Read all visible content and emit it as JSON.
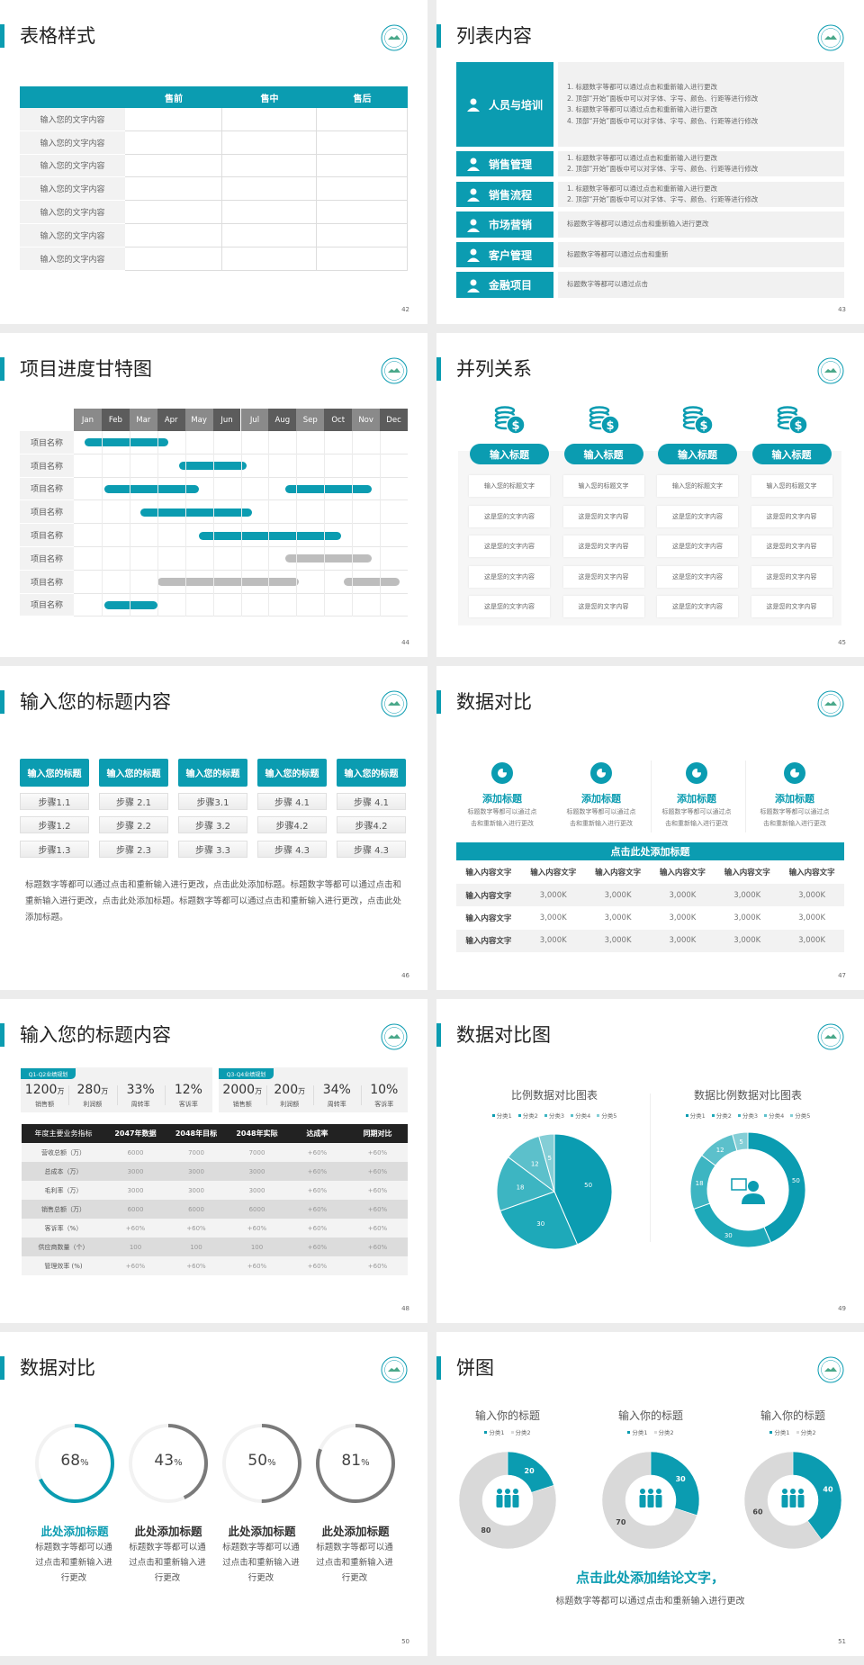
{
  "theme": {
    "accent": "#0b9cb1",
    "gray_bar": "#bdbdbd",
    "dark_header": "#222222"
  },
  "slides": [
    {
      "title": "表格样式",
      "page": "42",
      "table": {
        "headers": [
          "",
          "售前",
          "售中",
          "售后"
        ],
        "rows": [
          "输入您的文字内容",
          "输入您的文字内容",
          "输入您的文字内容",
          "输入您的文字内容",
          "输入您的文字内容",
          "输入您的文字内容",
          "输入您的文字内容"
        ]
      }
    },
    {
      "title": "列表内容",
      "page": "43",
      "items": [
        {
          "label": "人员与培训",
          "icon": "team-training-icon",
          "lines": [
            "1.  标题数字等都可以通过点击和重新输入进行更改",
            "2.  顶部“开始”面板中可以对字体、字号、颜色、行距等进行修改",
            "3.  标题数字等都可以通过点击和重新输入进行更改",
            "4.  顶部“开始”面板中可以对字体、字号、颜色、行距等进行修改"
          ]
        },
        {
          "label": "销售管理",
          "icon": "user-gear-icon",
          "lines": [
            "1.  标题数字等都可以通过点击和重新输入进行更改",
            "2.  顶部“开始”面板中可以对字体、字号、颜色、行距等进行修改"
          ]
        },
        {
          "label": "销售流程",
          "icon": "shield-icon",
          "lines": [
            "1.  标题数字等都可以通过点击和重新输入进行更改",
            "2.  顶部“开始”面板中可以对字体、字号、颜色、行距等进行修改"
          ]
        },
        {
          "label": "市场营销",
          "icon": "bar-chart-icon",
          "lines": [
            "标题数字等都可以通过点击和重新输入进行更改"
          ]
        },
        {
          "label": "客户管理",
          "icon": "users-icon",
          "lines": [
            "标题数字等都可以通过点击和重新"
          ]
        },
        {
          "label": "金融项目",
          "icon": "money-hand-icon",
          "lines": [
            "标题数字等都可以通过点击"
          ]
        }
      ]
    },
    {
      "title": "项目进度甘特图",
      "page": "44",
      "gantt": {
        "months": [
          "Jan",
          "Feb",
          "Mar",
          "Apr",
          "May",
          "Jun",
          "Jul",
          "Aug",
          "Sep",
          "Oct",
          "Nov",
          "Dec"
        ],
        "rows": [
          {
            "label": "项目名称",
            "bars": [
              {
                "start": 0.4,
                "end": 3.4,
                "status": "active"
              }
            ]
          },
          {
            "label": "项目名称",
            "bars": [
              {
                "start": 3.8,
                "end": 6.2,
                "status": "active"
              }
            ]
          },
          {
            "label": "项目名称",
            "bars": [
              {
                "start": 1.1,
                "end": 4.5,
                "status": "active"
              },
              {
                "start": 7.6,
                "end": 10.7,
                "status": "active"
              }
            ]
          },
          {
            "label": "项目名称",
            "bars": [
              {
                "start": 2.4,
                "end": 6.4,
                "status": "active"
              }
            ]
          },
          {
            "label": "项目名称",
            "bars": [
              {
                "start": 4.5,
                "end": 9.6,
                "status": "active"
              }
            ]
          },
          {
            "label": "项目名称",
            "bars": [
              {
                "start": 7.6,
                "end": 10.7,
                "status": "inactive"
              }
            ]
          },
          {
            "label": "项目名称",
            "bars": [
              {
                "start": 3.0,
                "end": 8.1,
                "status": "inactive"
              },
              {
                "start": 9.7,
                "end": 11.7,
                "status": "inactive"
              }
            ]
          },
          {
            "label": "项目名称",
            "bars": [
              {
                "start": 1.1,
                "end": 3.0,
                "status": "active"
              }
            ]
          }
        ]
      }
    },
    {
      "title": "并列关系",
      "page": "45",
      "columns": [
        {
          "icon": "coins-dollar-icon",
          "heading": "输入标题",
          "cells": [
            "输入您的标题文字",
            "这是您的文字内容",
            "这是您的文字内容",
            "这是您的文字内容",
            "这是您的文字内容"
          ]
        },
        {
          "icon": "coins-dollar-icon",
          "heading": "输入标题",
          "cells": [
            "输入您的标题文字",
            "这是您的文字内容",
            "这是您的文字内容",
            "这是您的文字内容",
            "这是您的文字内容"
          ]
        },
        {
          "icon": "coins-dollar-icon",
          "heading": "输入标题",
          "cells": [
            "输入您的标题文字",
            "这是您的文字内容",
            "这是您的文字内容",
            "这是您的文字内容",
            "这是您的文字内容"
          ]
        },
        {
          "icon": "coins-dollar-icon",
          "heading": "输入标题",
          "cells": [
            "输入您的标题文字",
            "这是您的文字内容",
            "这是您的文字内容",
            "这是您的文字内容",
            "这是您的文字内容"
          ]
        }
      ]
    },
    {
      "title": "输入您的标题内容",
      "page": "46",
      "columns": [
        {
          "heading": "输入您的标题",
          "steps": [
            "步骤1.1",
            "步骤1.2",
            "步骤1.3"
          ]
        },
        {
          "heading": "输入您的标题",
          "steps": [
            "步骤 2.1",
            "步骤 2.2",
            "步骤 2.3"
          ]
        },
        {
          "heading": "输入您的标题",
          "steps": [
            "步骤3.1",
            "步骤 3.2",
            "步骤 3.3"
          ]
        },
        {
          "heading": "输入您的标题",
          "steps": [
            "步骤 4.1",
            "步骤4.2",
            "步骤 4.3"
          ]
        },
        {
          "heading": "输入您的标题",
          "steps": [
            "步骤 4.1",
            "步骤4.2",
            "步骤 4.3"
          ]
        }
      ],
      "paragraph": "标题数字等都可以通过点击和重新输入进行更改，点击此处添加标题。标题数字等都可以通过点击和重新输入进行更改，点击此处添加标题。标题数字等都可以通过点击和重新输入进行更改，点击此处添加标题。"
    },
    {
      "title": "数据对比",
      "page": "47",
      "features": [
        {
          "icon": "pie-chart-icon",
          "heading": "添加标题",
          "desc": [
            "标题数字等都可以通过点",
            "击和重新输入进行更改"
          ]
        },
        {
          "icon": "pie-chart-icon",
          "heading": "添加标题",
          "desc": [
            "标题数字等都可以通过点",
            "击和重新输入进行更改"
          ]
        },
        {
          "icon": "pie-chart-icon",
          "heading": "添加标题",
          "desc": [
            "标题数字等都可以通过点",
            "击和重新输入进行更改"
          ]
        },
        {
          "icon": "pie-chart-icon",
          "heading": "添加标题",
          "desc": [
            "标题数字等都可以通过点",
            "击和重新输入进行更改"
          ]
        }
      ],
      "table": {
        "caption": "点击此处添加标题",
        "headers": [
          "输入内容文字",
          "输入内容文字",
          "输入内容文字",
          "输入内容文字",
          "输入内容文字",
          "输入内容文字"
        ],
        "rows": [
          [
            "输入内容文字",
            "3,000K",
            "3,000K",
            "3,000K",
            "3,000K",
            "3,000K"
          ],
          [
            "输入内容文字",
            "3,000K",
            "3,000K",
            "3,000K",
            "3,000K",
            "3,000K"
          ],
          [
            "输入内容文字",
            "3,000K",
            "3,000K",
            "3,000K",
            "3,000K",
            "3,000K"
          ]
        ]
      }
    },
    {
      "title": "输入您的标题内容",
      "page": "48",
      "panels": [
        {
          "tag": "Q1-Q2业绩规划",
          "stats": [
            {
              "value": "1200",
              "unit": "万",
              "label": "销售额"
            },
            {
              "value": "280",
              "unit": "万",
              "label": "利润额"
            },
            {
              "value": "33%",
              "unit": "",
              "label": "周转率"
            },
            {
              "value": "12%",
              "unit": "",
              "label": "客诉率"
            }
          ]
        },
        {
          "tag": "Q3-Q4业绩规划",
          "stats": [
            {
              "value": "2000",
              "unit": "万",
              "label": "销售额"
            },
            {
              "value": "200",
              "unit": "万",
              "label": "利润额"
            },
            {
              "value": "34%",
              "unit": "",
              "label": "周转率"
            },
            {
              "value": "10%",
              "unit": "",
              "label": "客诉率"
            }
          ]
        }
      ],
      "table": {
        "headers": [
          "年度主要业务指标",
          "2047年数据",
          "2048年目标",
          "2048年实际",
          "达成率",
          "同期对比"
        ],
        "rows": [
          [
            "营收总额（万）",
            "6000",
            "7000",
            "7000",
            "+60%",
            "+60%"
          ],
          [
            "总成本（万）",
            "3000",
            "3000",
            "3000",
            "+60%",
            "+60%"
          ],
          [
            "毛利率（万）",
            "3000",
            "3000",
            "3000",
            "+60%",
            "+60%"
          ],
          [
            "销售总额（万）",
            "6000",
            "6000",
            "6000",
            "+60%",
            "+60%"
          ],
          [
            "客诉率（%）",
            "+60%",
            "+60%",
            "+60%",
            "+60%",
            "+60%"
          ],
          [
            "供应商数量（个）",
            "100",
            "100",
            "100",
            "+60%",
            "+60%"
          ],
          [
            "管理效率 (%)",
            "+60%",
            "+60%",
            "+60%",
            "+60%",
            "+60%"
          ]
        ]
      }
    },
    {
      "title": "数据对比图",
      "page": "49",
      "center_icon": "customer-service-icon"
    },
    {
      "title": "数据对比",
      "page": "50",
      "rings": [
        {
          "percent": 68,
          "unit": "%",
          "heading": "此处添加标题",
          "desc": "标题数字等都可以通过点击和重新输入进行更改",
          "color": "#0b9cb1"
        },
        {
          "percent": 43,
          "unit": "%",
          "heading": "此处添加标题",
          "desc": "标题数字等都可以通过点击和重新输入进行更改",
          "color": "#7a7a7a"
        },
        {
          "percent": 50,
          "unit": "%",
          "heading": "此处添加标题",
          "desc": "标题数字等都可以通过点击和重新输入进行更改",
          "color": "#7a7a7a"
        },
        {
          "percent": 81,
          "unit": "%",
          "heading": "此处添加标题",
          "desc": "标题数字等都可以通过点击和重新输入进行更改",
          "color": "#7a7a7a"
        }
      ]
    },
    {
      "title": "饼图",
      "page": "51",
      "center_icon": "team-icon",
      "conclusion": "点击此处添加结论文字，",
      "subtext": "标题数字等都可以通过点击和重新输入进行更改"
    }
  ],
  "chart_data": [
    {
      "type": "pie",
      "title": "比例数据对比图表",
      "categories": [
        "分类1",
        "分类2",
        "分类3",
        "分类4",
        "分类5"
      ],
      "values": [
        50,
        30,
        18,
        12,
        5
      ],
      "colors": [
        "#0b9cb1",
        "#1ea9b9",
        "#3db5c2",
        "#5cc0cb",
        "#84ced6"
      ],
      "legend": "top"
    },
    {
      "type": "pie",
      "variant": "donut",
      "title": "数据比例数据对比图表",
      "categories": [
        "分类1",
        "分类2",
        "分类3",
        "分类4",
        "分类5"
      ],
      "values": [
        50,
        30,
        18,
        12,
        5
      ],
      "colors": [
        "#0b9cb1",
        "#1ea9b9",
        "#3db5c2",
        "#5cc0cb",
        "#84ced6"
      ],
      "legend": "top"
    },
    {
      "type": "pie",
      "variant": "donut",
      "title": "输入你的标题",
      "categories": [
        "分类1",
        "分类2"
      ],
      "values": [
        20,
        80
      ],
      "colors": [
        "#0b9cb1",
        "#d9d9d9"
      ],
      "legend": "top"
    },
    {
      "type": "pie",
      "variant": "donut",
      "title": "输入你的标题",
      "categories": [
        "分类1",
        "分类2"
      ],
      "values": [
        30,
        70
      ],
      "colors": [
        "#0b9cb1",
        "#d9d9d9"
      ],
      "legend": "top"
    },
    {
      "type": "pie",
      "variant": "donut",
      "title": "输入你的标题",
      "categories": [
        "分类1",
        "分类2"
      ],
      "values": [
        40,
        60
      ],
      "colors": [
        "#0b9cb1",
        "#d9d9d9"
      ],
      "legend": "top"
    }
  ]
}
